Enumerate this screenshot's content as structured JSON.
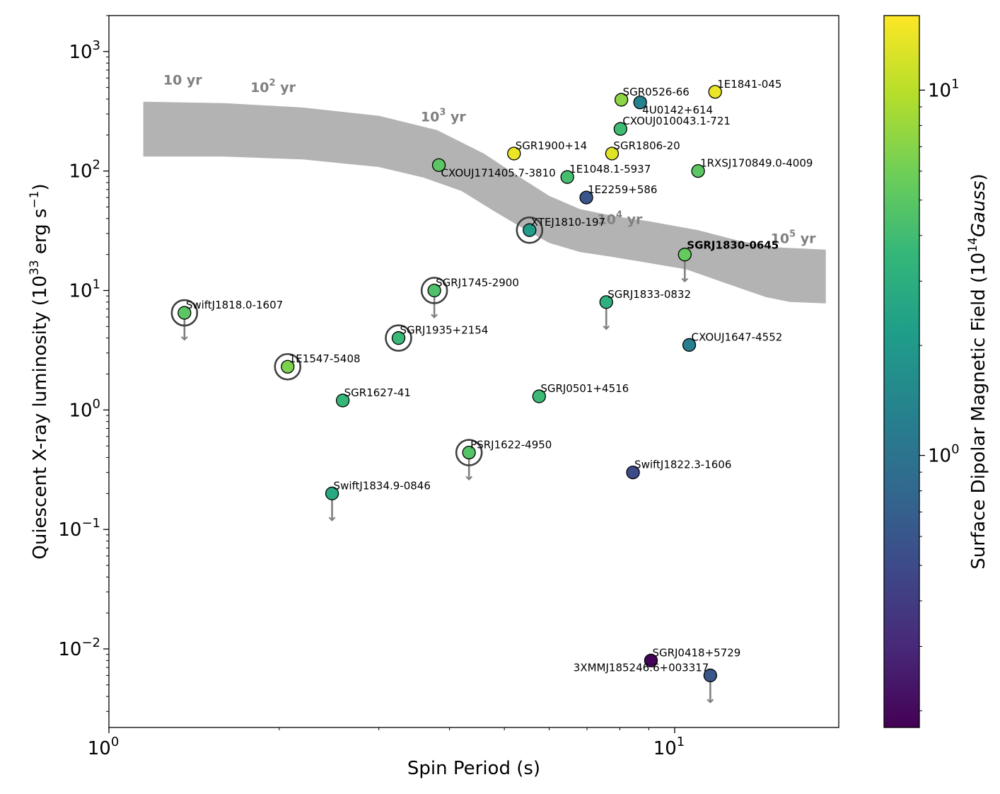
{
  "chart_data": {
    "type": "scatter",
    "xscale": "log",
    "yscale": "log",
    "xlim": [
      1.0,
      19.5
    ],
    "ylim": [
      0.0022,
      2000
    ],
    "xlabel": "Spin Period (s)",
    "ylabel_parts": [
      "Quiescent X-ray luminosity (10",
      "33",
      " erg s",
      "−1",
      ")"
    ],
    "colorbar_label_parts": [
      "Surface Dipolar Magnetic Field (10",
      "14",
      "Gauss",
      ")"
    ],
    "colorbar_range": [
      0.18,
      16
    ],
    "colormap": [
      "#440154",
      "#482878",
      "#3e4989",
      "#31688e",
      "#26828e",
      "#1f9e89",
      "#35b779",
      "#6ece58",
      "#b5de2b",
      "#fde725"
    ],
    "x_ticks": [
      {
        "base": "10",
        "exp": "0",
        "value": 1
      },
      {
        "base": "10",
        "exp": "1",
        "value": 10
      }
    ],
    "y_ticks": [
      {
        "base": "10",
        "exp": "−2",
        "value": 0.01
      },
      {
        "base": "10",
        "exp": "−1",
        "value": 0.1
      },
      {
        "base": "10",
        "exp": "0",
        "value": 1
      },
      {
        "base": "10",
        "exp": "1",
        "value": 10
      },
      {
        "base": "10",
        "exp": "2",
        "value": 100
      },
      {
        "base": "10",
        "exp": "3",
        "value": 1000
      }
    ],
    "colorbar_ticks": [
      {
        "base": "10",
        "exp": "0",
        "value": 1
      },
      {
        "base": "10",
        "exp": "1",
        "value": 10
      }
    ],
    "band": {
      "color": "#b3b3b3",
      "upper": [
        [
          1.15,
          380
        ],
        [
          1.6,
          370
        ],
        [
          2.2,
          340
        ],
        [
          3.0,
          290
        ],
        [
          3.8,
          220
        ],
        [
          4.6,
          140
        ],
        [
          5.3,
          90
        ],
        [
          6.0,
          62
        ],
        [
          6.8,
          48
        ],
        [
          7.8,
          42
        ],
        [
          9.0,
          38
        ],
        [
          11.0,
          32
        ],
        [
          13.0,
          26
        ],
        [
          15.0,
          23
        ],
        [
          18.5,
          22
        ]
      ],
      "lower": [
        [
          1.15,
          132
        ],
        [
          1.6,
          132
        ],
        [
          2.2,
          125
        ],
        [
          3.0,
          108
        ],
        [
          3.6,
          88
        ],
        [
          4.2,
          68
        ],
        [
          4.8,
          46
        ],
        [
          5.4,
          33
        ],
        [
          6.0,
          25
        ],
        [
          6.8,
          21
        ],
        [
          7.8,
          19
        ],
        [
          9.0,
          17
        ],
        [
          10.5,
          15
        ],
        [
          12.0,
          12
        ],
        [
          14.5,
          8.8
        ],
        [
          16.0,
          8.0
        ],
        [
          18.5,
          7.8
        ]
      ]
    },
    "age_labels": [
      {
        "base": "10",
        "exp": "",
        "suffix": " yr",
        "x": 1.35,
        "y": 530
      },
      {
        "base": "10",
        "exp": "2",
        "suffix": " yr",
        "x": 1.95,
        "y": 460
      },
      {
        "base": "10",
        "exp": "3",
        "suffix": " yr",
        "x": 3.9,
        "y": 260
      },
      {
        "base": "10",
        "exp": "4",
        "suffix": " yr",
        "x": 8.0,
        "y": 36
      },
      {
        "base": "10",
        "exp": "5",
        "suffix": " yr",
        "x": 16.2,
        "y": 25
      }
    ],
    "points": [
      {
        "name": "SGR0526-66",
        "x": 8.05,
        "y": 395,
        "b": 7.3,
        "upper_limit": false,
        "circled": false
      },
      {
        "name": "4U0142+614",
        "x": 8.69,
        "y": 375,
        "b": 1.3,
        "upper_limit": false,
        "circled": false
      },
      {
        "name": "1E1841-045",
        "x": 11.79,
        "y": 460,
        "b": 14,
        "upper_limit": false,
        "circled": false
      },
      {
        "name": "CXOUJ010043.1-721",
        "x": 8.02,
        "y": 225,
        "b": 3.9,
        "upper_limit": false,
        "circled": false
      },
      {
        "name": "SGR1900+14",
        "x": 5.2,
        "y": 140,
        "b": 14,
        "upper_limit": false,
        "circled": false
      },
      {
        "name": "SGR1806-20",
        "x": 7.75,
        "y": 140,
        "b": 13,
        "upper_limit": false,
        "circled": false
      },
      {
        "name": "CXOUJ171405.7-3810",
        "x": 3.83,
        "y": 112,
        "b": 5.0,
        "upper_limit": false,
        "circled": false
      },
      {
        "name": "1E1048.1-5937",
        "x": 6.46,
        "y": 89,
        "b": 4.2,
        "upper_limit": false,
        "circled": false
      },
      {
        "name": "1RXSJ170849.0-4009",
        "x": 11.0,
        "y": 100,
        "b": 5.0,
        "upper_limit": false,
        "circled": false
      },
      {
        "name": "1E2259+586",
        "x": 6.98,
        "y": 60,
        "b": 0.6,
        "upper_limit": false,
        "circled": false
      },
      {
        "name": "XTEJ1810-197",
        "x": 5.54,
        "y": 32,
        "b": 2.1,
        "upper_limit": false,
        "circled": true
      },
      {
        "name": "SGRJ1830-0645",
        "x": 10.42,
        "y": 20,
        "b": 5.5,
        "upper_limit": true,
        "circled": false,
        "bold": true
      },
      {
        "name": "SGRJ1745-2900",
        "x": 3.76,
        "y": 10,
        "b": 4.5,
        "upper_limit": true,
        "circled": true
      },
      {
        "name": "SGRJ1833-0832",
        "x": 7.57,
        "y": 8,
        "b": 3.1,
        "upper_limit": true,
        "circled": false
      },
      {
        "name": "SwiftJ1818.0-1607",
        "x": 1.36,
        "y": 6.5,
        "b": 5.0,
        "upper_limit": true,
        "circled": true
      },
      {
        "name": "SGRJ1935+2154",
        "x": 3.25,
        "y": 4.0,
        "b": 3.7,
        "upper_limit": false,
        "circled": true
      },
      {
        "name": "CXOUJ1647-4552",
        "x": 10.61,
        "y": 3.5,
        "b": 1.2,
        "upper_limit": false,
        "circled": false
      },
      {
        "name": "1E1547-5408",
        "x": 2.07,
        "y": 2.3,
        "b": 6.5,
        "upper_limit": false,
        "circled": true
      },
      {
        "name": "SGR1627-41",
        "x": 2.59,
        "y": 1.2,
        "b": 3.6,
        "upper_limit": false,
        "circled": false
      },
      {
        "name": "SGRJ0501+4516",
        "x": 5.76,
        "y": 1.3,
        "b": 3.8,
        "upper_limit": false,
        "circled": false
      },
      {
        "name": "PSRJ1622-4950",
        "x": 4.33,
        "y": 0.44,
        "b": 4.8,
        "upper_limit": true,
        "circled": true
      },
      {
        "name": "SwiftJ1822.3-1606",
        "x": 8.44,
        "y": 0.3,
        "b": 0.5,
        "upper_limit": false,
        "circled": false
      },
      {
        "name": "SwiftJ1834.9-0846",
        "x": 2.48,
        "y": 0.2,
        "b": 2.7,
        "upper_limit": true,
        "circled": false
      },
      {
        "name": "SGRJ0418+5729",
        "x": 9.08,
        "y": 0.008,
        "b": 0.19,
        "upper_limit": false,
        "circled": false
      },
      {
        "name": "3XMMJ185246.6+003317",
        "x": 11.56,
        "y": 0.006,
        "b": 0.6,
        "upper_limit": true,
        "circled": false
      }
    ]
  }
}
